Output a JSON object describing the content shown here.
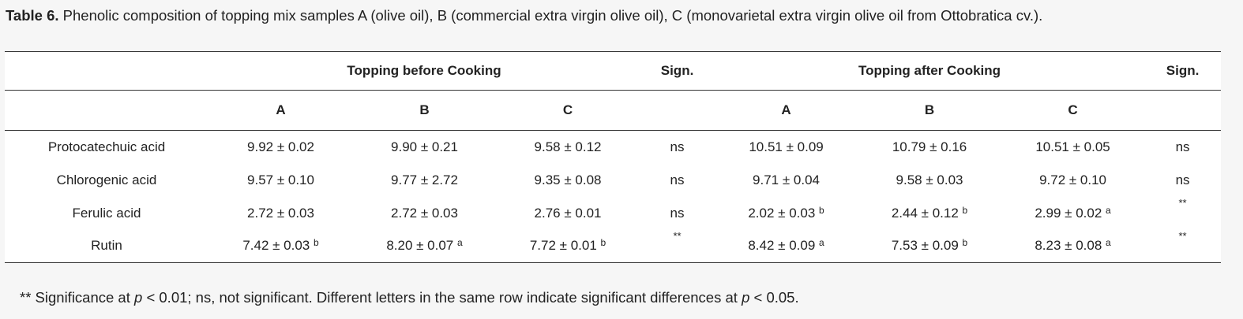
{
  "caption": {
    "label": "Table 6.",
    "text": " Phenolic composition of topping mix samples A (olive oil), B (commercial extra virgin olive oil), C (monovarietal extra virgin olive oil from Ottobratica cv.)."
  },
  "headers": {
    "before": "Topping before Cooking",
    "after": "Topping after Cooking",
    "sign": "Sign.",
    "samples": [
      "A",
      "B",
      "C"
    ]
  },
  "rows": [
    {
      "name": "Protocatechuic acid",
      "before": [
        {
          "v": "9.92 ± 0.02",
          "s": ""
        },
        {
          "v": "9.90 ± 0.21",
          "s": ""
        },
        {
          "v": "9.58 ± 0.12",
          "s": ""
        }
      ],
      "sign_before": "ns",
      "after": [
        {
          "v": "10.51 ± 0.09",
          "s": ""
        },
        {
          "v": "10.79 ± 0.16",
          "s": ""
        },
        {
          "v": "10.51 ± 0.05",
          "s": ""
        }
      ],
      "sign_after": "ns"
    },
    {
      "name": "Chlorogenic acid",
      "before": [
        {
          "v": "9.57 ± 0.10",
          "s": ""
        },
        {
          "v": "9.77 ± 2.72",
          "s": ""
        },
        {
          "v": "9.35 ± 0.08",
          "s": ""
        }
      ],
      "sign_before": "ns",
      "after": [
        {
          "v": "9.71 ± 0.04",
          "s": ""
        },
        {
          "v": "9.58 ± 0.03",
          "s": ""
        },
        {
          "v": "9.72 ± 0.10",
          "s": ""
        }
      ],
      "sign_after": "ns"
    },
    {
      "name": "Ferulic acid",
      "before": [
        {
          "v": "2.72 ± 0.03",
          "s": ""
        },
        {
          "v": "2.72 ± 0.03",
          "s": ""
        },
        {
          "v": "2.76 ± 0.01",
          "s": ""
        }
      ],
      "sign_before": "ns",
      "after": [
        {
          "v": "2.02 ± 0.03",
          "s": "b"
        },
        {
          "v": "2.44 ± 0.12",
          "s": "b"
        },
        {
          "v": "2.99 ± 0.02",
          "s": "a"
        }
      ],
      "sign_after": "**"
    },
    {
      "name": "Rutin",
      "before": [
        {
          "v": "7.42 ± 0.03",
          "s": "b"
        },
        {
          "v": "8.20 ± 0.07",
          "s": "a"
        },
        {
          "v": "7.72 ± 0.01",
          "s": "b"
        }
      ],
      "sign_before": "**",
      "after": [
        {
          "v": "8.42 ± 0.09",
          "s": "a"
        },
        {
          "v": "7.53 ± 0.09",
          "s": "b"
        },
        {
          "v": "8.23 ± 0.08",
          "s": "a"
        }
      ],
      "sign_after": "**"
    }
  ],
  "footnote": {
    "part1": "** Significance at ",
    "p1": "p",
    "part2": " < 0.01; ns, not significant. Different letters in the same row indicate significant differences at ",
    "p2": "p",
    "part3": " < 0.05."
  }
}
